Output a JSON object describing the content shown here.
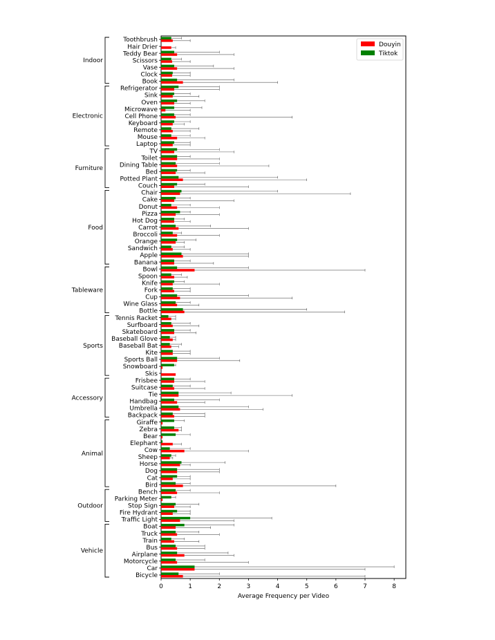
{
  "chart_data": {
    "type": "bar",
    "orientation": "horizontal",
    "xlabel": "Average Frequency per Video",
    "ylabel": "",
    "xlim": [
      0,
      8.4
    ],
    "xticks": [
      "0",
      "1",
      "2",
      "3",
      "4",
      "5",
      "6",
      "7",
      "8"
    ],
    "grid": false,
    "legend_position": "top-right",
    "categories": [
      "Toothbrush",
      "Hair Drier",
      "Teddy Bear",
      "Scissors",
      "Vase",
      "Clock",
      "Book",
      "Refrigerator",
      "Sink",
      "Oven",
      "Microwave",
      "Cell Phone",
      "Keyboard",
      "Remote",
      "Mouse",
      "Laptop",
      "TV",
      "Toilet",
      "Dining Table",
      "Bed",
      "Potted Plant",
      "Couch",
      "Chair",
      "Cake",
      "Donut",
      "Pizza",
      "Hot Dog",
      "Carrot",
      "Broccoli",
      "Orange",
      "Sandwich",
      "Apple",
      "Banana",
      "Bowl",
      "Spoon",
      "Knife",
      "Fork",
      "Cup",
      "Wine Glass",
      "Bottle",
      "Tennis Racket",
      "Surfboard",
      "Skateboard",
      "Baseball Glove",
      "Baseball Bat",
      "Kite",
      "Sports Ball",
      "Snowboard",
      "Skis",
      "Frisbee",
      "Suitcase",
      "Tie",
      "Handbag",
      "Umbrella",
      "Backpack",
      "Giraffe",
      "Zebra",
      "Bear",
      "Elephant",
      "Cow",
      "Sheep",
      "Horse",
      "Dog",
      "Cat",
      "Bird",
      "Bench",
      "Parking Meter",
      "Stop Sign",
      "Fire Hydrant",
      "Traffic Light",
      "Boat",
      "Truck",
      "Train",
      "Bus",
      "Airplane",
      "Motorcycle",
      "Car",
      "Bicycle"
    ],
    "groups": [
      {
        "name": "Indoor",
        "first": 0,
        "last": 6
      },
      {
        "name": "Electronic",
        "first": 7,
        "last": 15
      },
      {
        "name": "Furniture",
        "first": 16,
        "last": 21
      },
      {
        "name": "Food",
        "first": 22,
        "last": 32
      },
      {
        "name": "Tableware",
        "first": 33,
        "last": 39
      },
      {
        "name": "Sports",
        "first": 40,
        "last": 48
      },
      {
        "name": "Accessory",
        "first": 49,
        "last": 54
      },
      {
        "name": "Animal",
        "first": 55,
        "last": 64
      },
      {
        "name": "Outdoor",
        "first": 65,
        "last": 69
      },
      {
        "name": "Vehicle",
        "first": 70,
        "last": 77
      }
    ],
    "series": [
      {
        "name": "Douyin",
        "color": "#ff0000",
        "values": [
          0.4,
          0.35,
          0.55,
          0.38,
          0.55,
          0.38,
          0.75,
          0.45,
          0.4,
          0.45,
          0.15,
          0.5,
          0.4,
          0.4,
          0.55,
          0.4,
          0.45,
          0.55,
          0.55,
          0.5,
          0.75,
          0.45,
          0.65,
          0.45,
          0.55,
          0.5,
          0.45,
          0.6,
          0.55,
          0.5,
          0.4,
          0.75,
          0.45,
          1.15,
          0.45,
          0.4,
          0.45,
          0.65,
          0.55,
          0.8,
          0.35,
          0.4,
          0.45,
          0.4,
          0.35,
          0.4,
          0.55,
          0.05,
          0.5,
          0.45,
          0.45,
          0.6,
          0.55,
          0.65,
          0.45,
          0.05,
          0.6,
          0.05,
          0.4,
          0.8,
          0.3,
          0.65,
          0.55,
          0.4,
          0.75,
          0.55,
          0.05,
          0.45,
          0.4,
          0.65,
          0.5,
          0.55,
          0.45,
          0.55,
          0.8,
          0.55,
          1.15,
          0.75
        ],
        "err_upper": [
          1.0,
          0.5,
          2.5,
          1.0,
          2.5,
          1.0,
          4.0,
          2.0,
          1.3,
          1.0,
          1.0,
          4.5,
          0.8,
          1.0,
          1.5,
          1.0,
          2.5,
          2.0,
          3.7,
          1.5,
          5.0,
          3.0,
          6.5,
          2.5,
          2.0,
          2.0,
          1.0,
          3.0,
          2.0,
          0.8,
          1.0,
          3.0,
          1.8,
          7.0,
          0.9,
          2.0,
          1.0,
          4.5,
          1.3,
          6.3,
          0.5,
          1.3,
          1.2,
          0.5,
          0.6,
          1.0,
          2.7,
          0.05,
          0.5,
          1.5,
          1.5,
          4.5,
          1.5,
          3.5,
          1.5,
          0.05,
          0.7,
          0.05,
          0.7,
          3.0,
          0.4,
          1.0,
          2.0,
          1.0,
          6.0,
          2.0,
          0.05,
          1.0,
          1.0,
          2.5,
          1.7,
          2.0,
          1.3,
          1.5,
          2.5,
          3.0,
          7.0,
          7.0
        ]
      },
      {
        "name": "Tiktok",
        "color": "#008000",
        "values": [
          0.35,
          0.0,
          0.45,
          0.35,
          0.45,
          0.4,
          0.55,
          0.6,
          0.45,
          0.55,
          0.45,
          0.45,
          0.45,
          0.35,
          0.35,
          0.45,
          0.55,
          0.55,
          0.5,
          0.55,
          0.6,
          0.55,
          0.7,
          0.5,
          0.35,
          0.65,
          0.45,
          0.5,
          0.4,
          0.55,
          0.35,
          0.7,
          0.45,
          0.55,
          0.35,
          0.45,
          0.4,
          0.55,
          0.5,
          0.75,
          0.25,
          0.35,
          0.45,
          0.3,
          0.3,
          0.4,
          0.55,
          0.45,
          0.0,
          0.45,
          0.4,
          0.6,
          0.45,
          0.6,
          0.4,
          0.45,
          0.45,
          0.5,
          0.05,
          0.3,
          0.35,
          0.7,
          0.55,
          0.55,
          0.5,
          0.5,
          0.35,
          0.5,
          0.55,
          1.0,
          0.8,
          0.5,
          0.35,
          0.5,
          0.55,
          0.5,
          1.15,
          0.6
        ],
        "err_upper": [
          0.7,
          0.0,
          2.0,
          0.7,
          1.8,
          1.0,
          2.5,
          2.0,
          1.0,
          1.5,
          1.4,
          1.0,
          1.0,
          1.3,
          1.0,
          1.0,
          2.0,
          1.0,
          2.0,
          1.0,
          4.0,
          1.5,
          4.0,
          1.0,
          1.0,
          1.0,
          0.8,
          1.7,
          0.7,
          1.2,
          0.8,
          3.0,
          1.0,
          3.0,
          0.7,
          0.8,
          1.0,
          3.0,
          1.0,
          5.0,
          0.5,
          1.0,
          1.0,
          0.5,
          0.7,
          1.0,
          2.0,
          0.5,
          0.0,
          1.0,
          1.0,
          2.4,
          2.0,
          3.0,
          1.5,
          0.8,
          0.7,
          1.0,
          0.05,
          1.0,
          0.5,
          2.2,
          2.0,
          1.0,
          1.0,
          1.0,
          0.5,
          1.3,
          1.0,
          3.8,
          2.5,
          1.3,
          0.8,
          1.5,
          2.3,
          1.5,
          8.0,
          2.0
        ]
      }
    ]
  }
}
